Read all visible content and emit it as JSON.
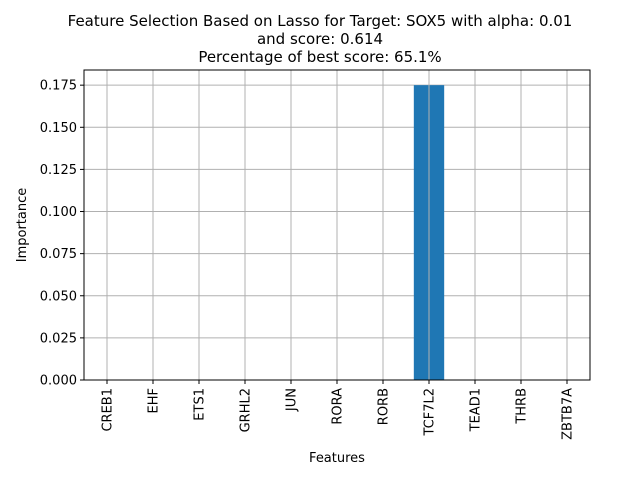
{
  "chart_data": {
    "type": "bar",
    "title_lines": [
      "Feature Selection Based on Lasso for Target: SOX5 with alpha: 0.01",
      "and score: 0.614",
      "Percentage of best score: 65.1%"
    ],
    "xlabel": "Features",
    "ylabel": "Importance",
    "categories": [
      "CREB1",
      "EHF",
      "ETS1",
      "GRHL2",
      "JUN",
      "RORA",
      "RORB",
      "TCF7L2",
      "TEAD1",
      "THRB",
      "ZBTB7A"
    ],
    "values": [
      0,
      0,
      0,
      0,
      0,
      0,
      0,
      0.175,
      0,
      0,
      0
    ],
    "ylim": [
      0,
      0.184
    ],
    "yticks": [
      "0.000",
      "0.025",
      "0.050",
      "0.075",
      "0.100",
      "0.125",
      "0.150",
      "0.175"
    ],
    "grid": true,
    "bar_color": "#1f77b4",
    "grid_color": "#b0b0b0"
  }
}
